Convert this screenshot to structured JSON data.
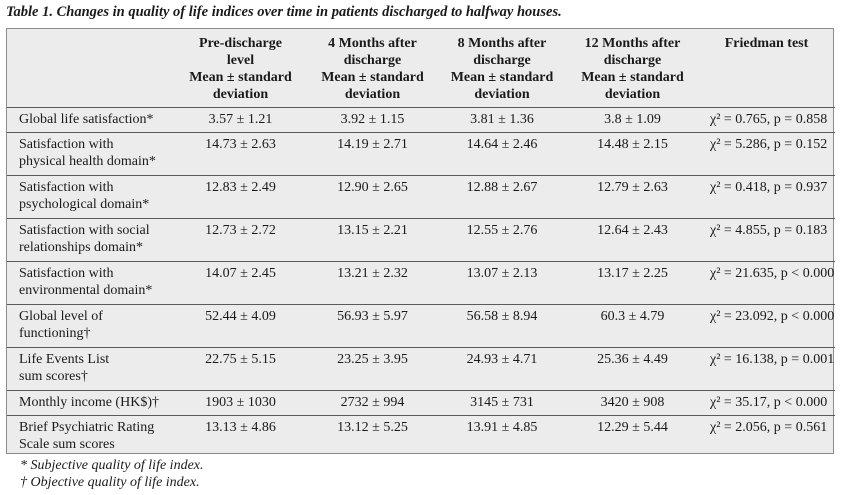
{
  "caption": "Table 1. Changes in quality of life indices over time in patients discharged to halfway houses.",
  "headers": [
    [
      "",
      "",
      "",
      ""
    ],
    [
      "Pre-discharge",
      "level",
      "Mean ± standard",
      "deviation"
    ],
    [
      "4 Months after",
      "discharge",
      "Mean ± standard",
      "deviation"
    ],
    [
      "8 Months after",
      "discharge",
      "Mean ± standard",
      "deviation"
    ],
    [
      "12 Months after",
      "discharge",
      "Mean ± standard",
      "deviation"
    ],
    [
      "Friedman test",
      "",
      "",
      ""
    ]
  ],
  "rows": [
    {
      "label": [
        "Global life satisfaction*",
        ""
      ],
      "values": [
        "3.57 ± 1.21",
        "3.92 ± 1.15",
        "3.81 ± 1.36",
        "3.8 ± 1.09"
      ],
      "test": "χ² = 0.765, p = 0.858"
    },
    {
      "label": [
        "Satisfaction with",
        "physical health domain*"
      ],
      "values": [
        "14.73 ± 2.63",
        "14.19 ± 2.71",
        "14.64 ± 2.46",
        "14.48 ± 2.15"
      ],
      "test": "χ² = 5.286, p = 0.152"
    },
    {
      "label": [
        "Satisfaction with",
        "psychological domain*"
      ],
      "values": [
        "12.83 ± 2.49",
        "12.90 ± 2.65",
        "12.88 ± 2.67",
        "12.79 ± 2.63"
      ],
      "test": "χ² = 0.418, p = 0.937"
    },
    {
      "label": [
        "Satisfaction with social",
        "relationships domain*"
      ],
      "values": [
        "12.73 ± 2.72",
        "13.15 ± 2.21",
        "12.55 ± 2.76",
        "12.64 ± 2.43"
      ],
      "test": "χ² = 4.855, p = 0.183"
    },
    {
      "label": [
        "Satisfaction with",
        "environmental domain*"
      ],
      "values": [
        "14.07 ± 2.45",
        "13.21 ± 2.32",
        "13.07 ± 2.13",
        "13.17 ± 2.25"
      ],
      "test": "χ² = 21.635, p < 0.000"
    },
    {
      "label": [
        "Global level of",
        "functioning†"
      ],
      "values": [
        "52.44 ± 4.09",
        "56.93 ± 5.97",
        "56.58 ± 8.94",
        "60.3 ± 4.79"
      ],
      "test": "χ² = 23.092, p < 0.000"
    },
    {
      "label": [
        "Life Events List",
        "sum scores†"
      ],
      "values": [
        "22.75 ± 5.15",
        "23.25 ± 3.95",
        "24.93 ± 4.71",
        "25.36 ± 4.49"
      ],
      "test": "χ² = 16.138, p = 0.001"
    },
    {
      "label": [
        "Monthly income (HK$)†",
        ""
      ],
      "values": [
        "1903 ± 1030",
        "2732 ± 994",
        "3145 ± 731",
        "3420 ± 908"
      ],
      "test": "χ² = 35.17, p < 0.000"
    },
    {
      "label": [
        "Brief Psychiatric Rating",
        "Scale sum scores"
      ],
      "values": [
        "13.13 ± 4.86",
        "13.12 ± 5.25",
        "13.91 ± 4.85",
        "12.29 ± 5.44"
      ],
      "test": "χ² = 2.056, p = 0.561"
    }
  ],
  "footnotes": [
    "* Subjective quality of life index.",
    "† Objective quality of life index."
  ]
}
